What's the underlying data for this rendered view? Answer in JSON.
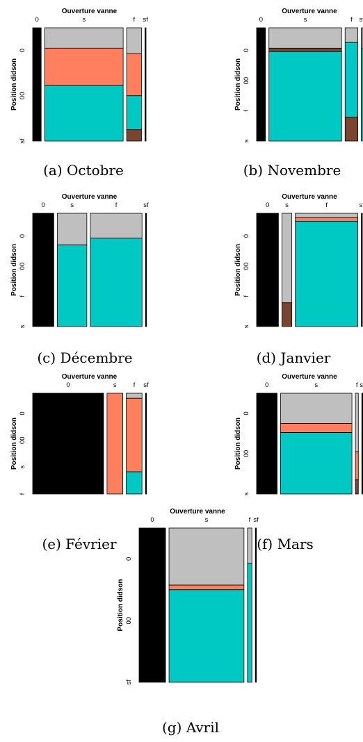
{
  "colors": {
    "absent": "#000000",
    "grey": "#bfbfbf",
    "salmon": "#ff7f5e",
    "teal": "#00c8c2",
    "brown": "#7a4530",
    "border": "#000000"
  },
  "chart_data": [
    {
      "type": "mosaic",
      "caption": "(a) Octobre",
      "xlabel": "Ouverture vanne",
      "ylabel": "Position didson",
      "x_tick_labels": [
        "0",
        "s",
        "f",
        "sf"
      ],
      "y_tick_labels": [
        "0",
        "00",
        "sf"
      ],
      "columns": [
        {
          "label": "0",
          "width": 0.08,
          "segments": [
            {
              "color": "absent",
              "value": 1.0
            }
          ]
        },
        {
          "label": "s",
          "width": 0.74,
          "segments": [
            {
              "color": "grey",
              "value": 0.18
            },
            {
              "color": "salmon",
              "value": 0.33
            },
            {
              "color": "teal",
              "value": 0.49
            }
          ]
        },
        {
          "label": "f",
          "width": 0.14,
          "segments": [
            {
              "color": "grey",
              "value": 0.23
            },
            {
              "color": "salmon",
              "value": 0.37
            },
            {
              "color": "teal",
              "value": 0.3
            },
            {
              "color": "brown",
              "value": 0.1
            }
          ]
        },
        {
          "label": "sf",
          "width": 0.01,
          "segments": [
            {
              "color": "absent",
              "value": 1.0
            }
          ]
        }
      ]
    },
    {
      "type": "mosaic",
      "caption": "(b) Novembre",
      "xlabel": "Ouverture vanne",
      "ylabel": "Position didson",
      "x_tick_labels": [
        "0",
        "s",
        "f",
        "sf"
      ],
      "y_tick_labels": [
        "0",
        "00",
        "f",
        "s"
      ],
      "columns": [
        {
          "label": "0",
          "width": 0.09,
          "segments": [
            {
              "color": "absent",
              "value": 1.0
            }
          ]
        },
        {
          "label": "s",
          "width": 0.74,
          "segments": [
            {
              "color": "grey",
              "value": 0.18
            },
            {
              "color": "brown",
              "value": 0.03
            },
            {
              "color": "teal",
              "value": 0.79
            }
          ]
        },
        {
          "label": "f",
          "width": 0.13,
          "segments": [
            {
              "color": "grey",
              "value": 0.13
            },
            {
              "color": "teal",
              "value": 0.66
            },
            {
              "color": "brown",
              "value": 0.21
            }
          ]
        },
        {
          "label": "sf",
          "width": 0.01,
          "segments": [
            {
              "color": "grey",
              "value": 0.18
            },
            {
              "color": "teal",
              "value": 0.82
            }
          ]
        }
      ]
    },
    {
      "type": "mosaic",
      "caption": "(c) Décembre",
      "xlabel": "Ouverture vanne",
      "ylabel": "Position didson",
      "x_tick_labels": [
        "0",
        "s",
        "f",
        "sf"
      ],
      "y_tick_labels": [
        "0",
        "00",
        "f",
        "s"
      ],
      "columns": [
        {
          "label": "0",
          "width": 0.2,
          "segments": [
            {
              "color": "absent",
              "value": 1.0
            }
          ]
        },
        {
          "label": "s",
          "width": 0.28,
          "segments": [
            {
              "color": "grey",
              "value": 0.28
            },
            {
              "color": "teal",
              "value": 0.72
            }
          ]
        },
        {
          "label": "f",
          "width": 0.49,
          "segments": [
            {
              "color": "grey",
              "value": 0.22
            },
            {
              "color": "teal",
              "value": 0.78
            }
          ]
        },
        {
          "label": "sf",
          "width": 0.005,
          "segments": [
            {
              "color": "absent",
              "value": 1.0
            }
          ]
        }
      ]
    },
    {
      "type": "mosaic",
      "caption": "(d) Janvier",
      "xlabel": "Ouverture vanne",
      "ylabel": "Position didson",
      "x_tick_labels": [
        "0",
        "s",
        "f",
        "sf"
      ],
      "y_tick_labels": [
        "0",
        "00",
        "f",
        "s"
      ],
      "columns": [
        {
          "label": "0",
          "width": 0.22,
          "segments": [
            {
              "color": "absent",
              "value": 1.0
            }
          ]
        },
        {
          "label": "s",
          "width": 0.1,
          "segments": [
            {
              "color": "grey",
              "value": 0.79
            },
            {
              "color": "brown",
              "value": 0.21
            }
          ]
        },
        {
          "label": "f",
          "width": 0.63,
          "segments": [
            {
              "color": "grey",
              "value": 0.04
            },
            {
              "color": "salmon",
              "value": 0.03
            },
            {
              "color": "teal",
              "value": 0.93
            }
          ]
        },
        {
          "label": "sf",
          "width": 0.01,
          "segments": [
            {
              "color": "absent",
              "value": 1.0
            }
          ]
        }
      ]
    },
    {
      "type": "mosaic",
      "caption": "(e) Février",
      "xlabel": "Ouverture vanne",
      "ylabel": "Position didson",
      "x_tick_labels": [
        "0",
        "s",
        "f",
        "sf"
      ],
      "y_tick_labels": [
        "0",
        "00",
        "s",
        "f"
      ],
      "columns": [
        {
          "label": "0",
          "width": 0.63,
          "segments": [
            {
              "color": "absent",
              "value": 1.0
            }
          ]
        },
        {
          "label": "s",
          "width": 0.14,
          "segments": [
            {
              "color": "salmon",
              "value": 1.0
            }
          ]
        },
        {
          "label": "f",
          "width": 0.14,
          "segments": [
            {
              "color": "grey",
              "value": 0.05
            },
            {
              "color": "salmon",
              "value": 0.73
            },
            {
              "color": "teal",
              "value": 0.22
            }
          ]
        },
        {
          "label": "sf",
          "width": 0.005,
          "segments": [
            {
              "color": "absent",
              "value": 1.0
            }
          ]
        }
      ]
    },
    {
      "type": "mosaic",
      "caption": "(f) Mars",
      "xlabel": "Ouverture vanne",
      "ylabel": "Position didson",
      "x_tick_labels": [
        "0",
        "s",
        "f",
        "sf"
      ],
      "y_tick_labels": [
        "0",
        "00",
        "s"
      ],
      "columns": [
        {
          "label": "0",
          "width": 0.21,
          "segments": [
            {
              "color": "absent",
              "value": 1.0
            }
          ]
        },
        {
          "label": "s",
          "width": 0.73,
          "segments": [
            {
              "color": "grey",
              "value": 0.3
            },
            {
              "color": "salmon",
              "value": 0.09
            },
            {
              "color": "teal",
              "value": 0.61
            }
          ]
        },
        {
          "label": "f",
          "width": 0.03,
          "segments": [
            {
              "color": "grey",
              "value": 0.58
            },
            {
              "color": "salmon",
              "value": 0.28
            },
            {
              "color": "brown",
              "value": 0.14
            }
          ]
        },
        {
          "label": "sf",
          "width": 0.005,
          "segments": [
            {
              "color": "absent",
              "value": 1.0
            }
          ]
        }
      ]
    },
    {
      "type": "mosaic",
      "caption": "(g) Avril",
      "xlabel": "Ouverture vanne",
      "ylabel": "Position didson",
      "x_tick_labels": [
        "0",
        "s",
        "f",
        "sf"
      ],
      "y_tick_labels": [
        "0",
        "00",
        "sf"
      ],
      "columns": [
        {
          "label": "0",
          "width": 0.24,
          "segments": [
            {
              "color": "absent",
              "value": 1.0
            }
          ]
        },
        {
          "label": "s",
          "width": 0.68,
          "segments": [
            {
              "color": "grey",
              "value": 0.37
            },
            {
              "color": "salmon",
              "value": 0.03
            },
            {
              "color": "teal",
              "value": 0.6
            }
          ]
        },
        {
          "label": "f",
          "width": 0.04,
          "segments": [
            {
              "color": "grey",
              "value": 0.23
            },
            {
              "color": "teal",
              "value": 0.77
            }
          ]
        },
        {
          "label": "sf",
          "width": 0.005,
          "segments": [
            {
              "color": "absent",
              "value": 1.0
            }
          ]
        }
      ]
    }
  ]
}
